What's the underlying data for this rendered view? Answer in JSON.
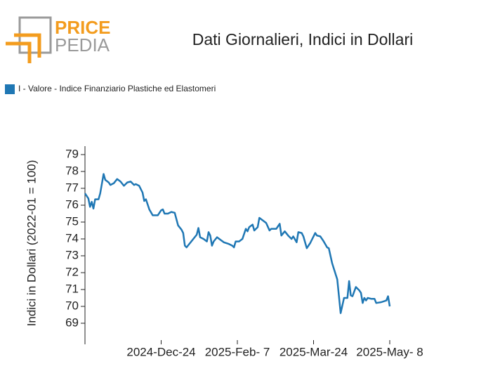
{
  "logo": {
    "top": "PRICE",
    "bottom": "PEDIA"
  },
  "chart_data": {
    "type": "line",
    "title": "Dati Giornalieri, Indici in Dollari",
    "y_label": "Indici in Dollari (2022-01 = 100)",
    "legend": "upper left",
    "grid": false,
    "xlim": [
      "2024-11-09",
      "2025-05-08"
    ],
    "xticks": [
      {
        "value": "2024-11-09",
        "label": null
      },
      {
        "value": "2024-12-24",
        "label": "2024-Dec-24"
      },
      {
        "value": "2025-02-07",
        "label": "2025-Feb- 7"
      },
      {
        "value": "2025-03-24",
        "label": "2025-Mar-24"
      },
      {
        "value": "2025-05-08",
        "label": "2025-May- 8"
      }
    ],
    "ylim": [
      68,
      79.5
    ],
    "yticks": [
      69,
      70,
      71,
      72,
      73,
      74,
      75,
      76,
      77,
      78,
      79
    ],
    "x": [
      "2024-11-09",
      "2024-11-11",
      "2024-11-12",
      "2024-11-13",
      "2024-11-14",
      "2024-11-15",
      "2024-11-17",
      "2024-11-18",
      "2024-11-20",
      "2024-11-21",
      "2024-11-23",
      "2024-11-24",
      "2024-11-26",
      "2024-11-28",
      "2024-11-30",
      "2024-12-02",
      "2024-12-04",
      "2024-12-06",
      "2024-12-08",
      "2024-12-09",
      "2024-12-11",
      "2024-12-13",
      "2024-12-14",
      "2024-12-15",
      "2024-12-17",
      "2024-12-19",
      "2024-12-22",
      "2024-12-24",
      "2024-12-25",
      "2024-12-26",
      "2024-12-28",
      "2024-12-30",
      "2025-01-01",
      "2025-01-03",
      "2025-01-05",
      "2025-01-06",
      "2025-01-07",
      "2025-01-08",
      "2025-01-10",
      "2025-01-12",
      "2025-01-14",
      "2025-01-15",
      "2025-01-16",
      "2025-01-18",
      "2025-01-20",
      "2025-01-21",
      "2025-01-22",
      "2025-01-23",
      "2025-01-24",
      "2025-01-26",
      "2025-01-28",
      "2025-01-30",
      "2025-02-02",
      "2025-02-04",
      "2025-02-05",
      "2025-02-06",
      "2025-02-08",
      "2025-02-10",
      "2025-02-12",
      "2025-02-13",
      "2025-02-14",
      "2025-02-16",
      "2025-02-17",
      "2025-02-19",
      "2025-02-20",
      "2025-02-22",
      "2025-02-24",
      "2025-02-26",
      "2025-02-27",
      "2025-03-02",
      "2025-03-04",
      "2025-03-05",
      "2025-03-07",
      "2025-03-09",
      "2025-03-11",
      "2025-03-12",
      "2025-03-14",
      "2025-03-15",
      "2025-03-17",
      "2025-03-18",
      "2025-03-20",
      "2025-03-22",
      "2025-03-25",
      "2025-03-26",
      "2025-03-28",
      "2025-03-30",
      "2025-04-01",
      "2025-04-02",
      "2025-04-04",
      "2025-04-07",
      "2025-04-09",
      "2025-04-11",
      "2025-04-13",
      "2025-04-14",
      "2025-04-15",
      "2025-04-16",
      "2025-04-18",
      "2025-04-20",
      "2025-04-21",
      "2025-04-22",
      "2025-04-23",
      "2025-04-24",
      "2025-04-25",
      "2025-04-27",
      "2025-04-29",
      "2025-04-30",
      "2025-05-03",
      "2025-05-06",
      "2025-05-07",
      "2025-05-08"
    ],
    "series": [
      {
        "name": "I - Valore - Indice Finanziario Plastiche ed Elastomeri",
        "color": "#1f77b4",
        "values": [
          76.7,
          76.4,
          75.9,
          76.2,
          75.8,
          76.35,
          76.35,
          76.7,
          77.85,
          77.5,
          77.35,
          77.2,
          77.3,
          77.55,
          77.4,
          77.15,
          77.35,
          77.4,
          77.2,
          77.25,
          77.15,
          76.75,
          76.25,
          76.35,
          75.75,
          75.4,
          75.4,
          75.7,
          75.75,
          75.5,
          75.5,
          75.6,
          75.55,
          74.8,
          74.55,
          74.35,
          73.6,
          73.5,
          73.75,
          74.0,
          74.25,
          74.65,
          74.1,
          74.0,
          73.85,
          74.4,
          74.2,
          73.6,
          73.85,
          74.1,
          73.95,
          73.8,
          73.7,
          73.6,
          73.5,
          73.85,
          73.85,
          74.0,
          74.6,
          74.45,
          74.7,
          74.85,
          74.5,
          74.7,
          75.25,
          75.1,
          74.95,
          74.5,
          74.6,
          74.6,
          74.9,
          74.2,
          74.45,
          74.2,
          74.0,
          74.15,
          73.8,
          74.4,
          74.35,
          74.15,
          73.45,
          73.75,
          74.35,
          74.2,
          74.15,
          73.85,
          73.5,
          73.45,
          72.55,
          71.6,
          69.6,
          70.5,
          70.5,
          71.5,
          70.65,
          70.6,
          71.15,
          70.95,
          70.8,
          70.2,
          70.5,
          70.35,
          70.5,
          70.45,
          70.45,
          70.2,
          70.25,
          70.35,
          70.6,
          70.0
        ]
      }
    ]
  }
}
